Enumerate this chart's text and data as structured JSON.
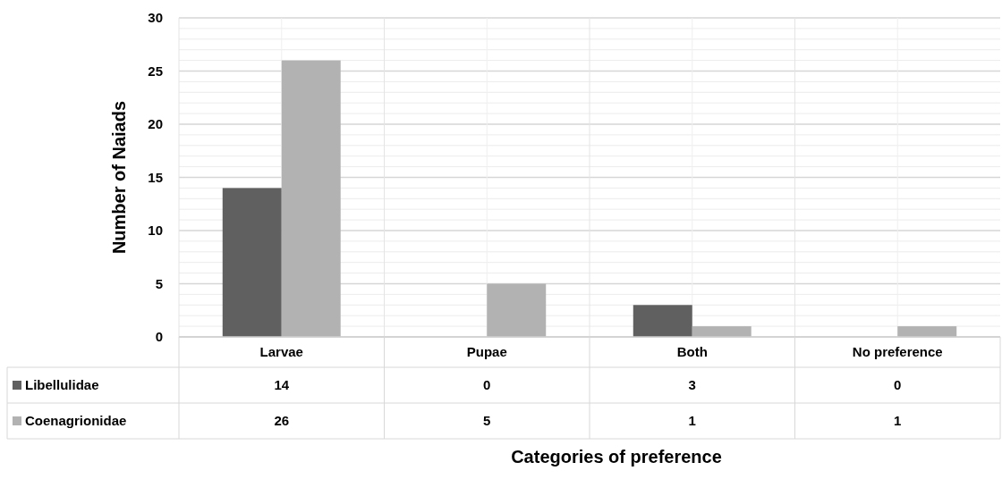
{
  "chart_data": {
    "type": "bar",
    "xlabel": "Categories of preference",
    "ylabel": "Number of Naiads",
    "categories": [
      "Larvae",
      "Pupae",
      "Both",
      "No preference"
    ],
    "series": [
      {
        "name": "Libellulidae",
        "color": "#606060",
        "values": [
          14,
          0,
          3,
          0
        ]
      },
      {
        "name": "Coenagrionidae",
        "color": "#b2b2b2",
        "values": [
          26,
          5,
          1,
          1
        ]
      }
    ],
    "ylim": [
      0,
      30
    ],
    "yticks": [
      0,
      5,
      10,
      15,
      20,
      25,
      30
    ],
    "grid": true,
    "legend": "bottom",
    "data_labels": true
  }
}
